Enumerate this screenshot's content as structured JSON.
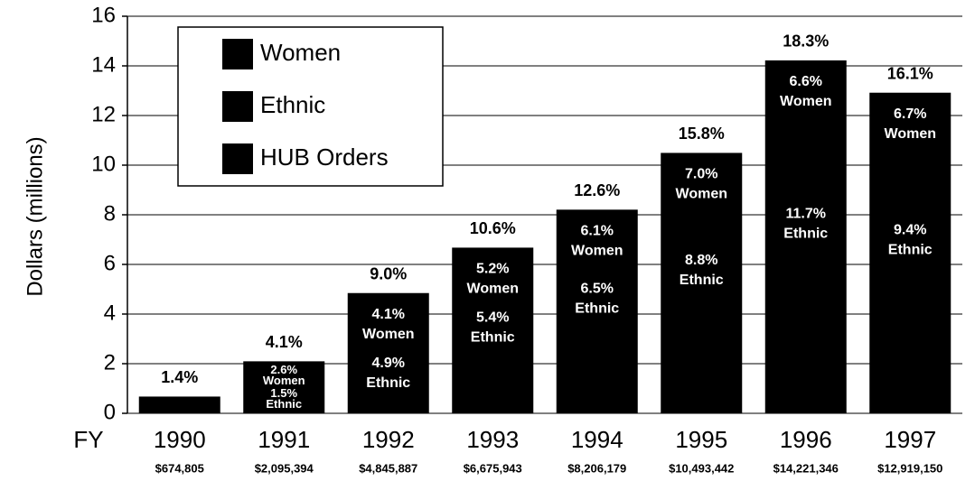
{
  "chart_data": {
    "type": "bar",
    "ylabel": "Dollars (millions)",
    "x_prefix": "FY",
    "legend": [
      "Women",
      "Ethnic",
      "HUB Orders"
    ],
    "categories": [
      "1990",
      "1991",
      "1992",
      "1993",
      "1994",
      "1995",
      "1996",
      "1997"
    ],
    "series": [
      {
        "name": "HUB Orders",
        "color": "#000000",
        "values": [
          0.674805,
          2.095394,
          4.845887,
          6.675943,
          8.206179,
          10.493442,
          14.221346,
          12.91915
        ],
        "value_labels": [
          "$674,805",
          "$2,095,394",
          "$4,845,887",
          "$6,675,943",
          "$8,206,179",
          "$10,493,442",
          "$14,221,346",
          "$12,919,150"
        ]
      }
    ],
    "share_labels": [
      "1.4%",
      "4.1%",
      "9.0%",
      "10.6%",
      "12.6%",
      "15.8%",
      "18.3%",
      "16.1%"
    ],
    "women_labels": [
      null,
      "2.6%",
      "4.1%",
      "5.2%",
      "6.1%",
      "7.0%",
      "6.6%",
      "6.7%"
    ],
    "ethnic_labels": [
      null,
      "1.5%",
      "4.9%",
      "5.4%",
      "6.5%",
      "8.8%",
      "11.7%",
      "9.4%"
    ],
    "ylim": [
      0,
      16
    ],
    "yticks": [
      0,
      2,
      4,
      6,
      8,
      10,
      12,
      14,
      16
    ],
    "grid": true
  }
}
